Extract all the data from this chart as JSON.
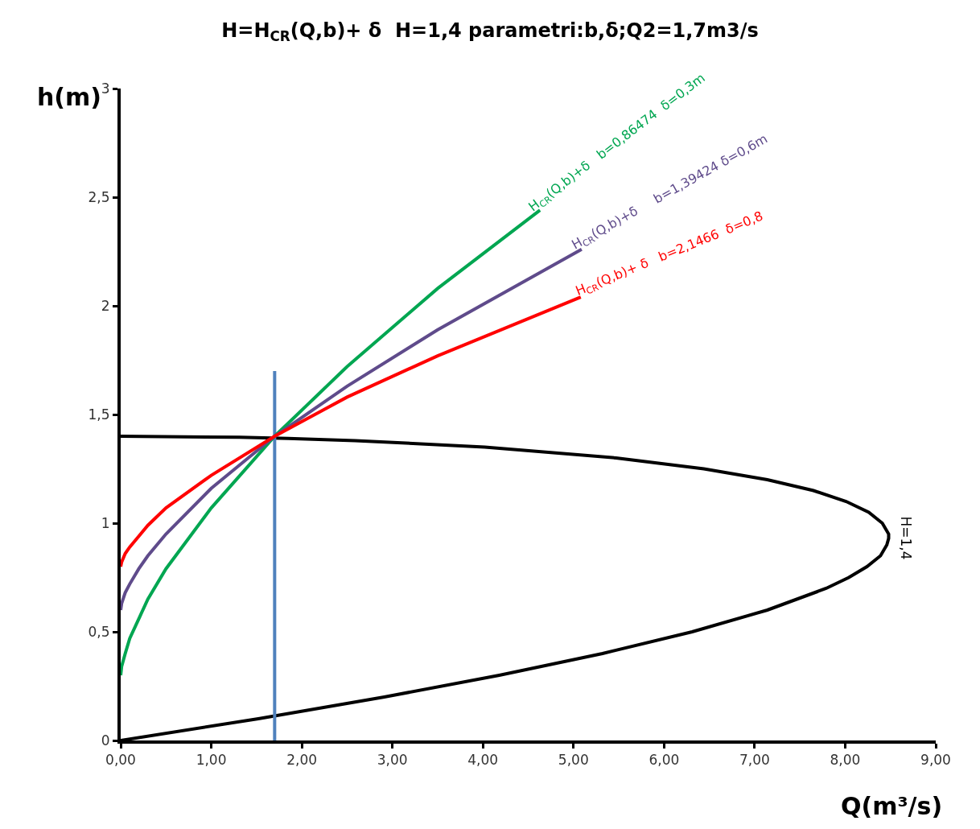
{
  "chart_data": {
    "type": "line",
    "title": "H=H$_{CR}$(Q,b)+ δ  H=1,4 parametri:b,δ;Q2=1,7m3/s",
    "xlabel": "Q(m³/s)",
    "ylabel": "h(m)",
    "xlim": [
      0,
      9
    ],
    "ylim": [
      0,
      3
    ],
    "xticks": [
      {
        "value": 0,
        "label": "0,00"
      },
      {
        "value": 1,
        "label": "1,00"
      },
      {
        "value": 2,
        "label": "2,00"
      },
      {
        "value": 3,
        "label": "3,00"
      },
      {
        "value": 4,
        "label": "4,00"
      },
      {
        "value": 5,
        "label": "5,00"
      },
      {
        "value": 6,
        "label": "6,00"
      },
      {
        "value": 7,
        "label": "7,00"
      },
      {
        "value": 8,
        "label": "8,00"
      },
      {
        "value": 9,
        "label": "9,00"
      }
    ],
    "yticks": [
      0,
      {
        "value": 0.5,
        "label": "0,5"
      },
      1,
      {
        "value": 1.5,
        "label": "1,5"
      },
      2,
      {
        "value": 2.5,
        "label": "2,5"
      },
      3
    ],
    "legend": false,
    "marker": "none",
    "line_style": "solid",
    "series": [
      {
        "name": "H=1,4",
        "color": "#000000",
        "x": [
          0,
          1.52,
          2.91,
          4.18,
          5.32,
          6.31,
          7.14,
          7.79,
          8.04,
          8.24,
          8.39,
          8.46,
          8.48,
          8.48,
          8.41,
          8.26,
          8.01,
          7.65,
          7.14,
          6.44,
          5.47,
          4.02,
          2.59,
          1.85,
          1.31,
          0
        ],
        "values": [
          0,
          0.1,
          0.2,
          0.3,
          0.4,
          0.5,
          0.6,
          0.7,
          0.75,
          0.8,
          0.85,
          0.9,
          0.93,
          0.95,
          1.0,
          1.05,
          1.1,
          1.15,
          1.2,
          1.25,
          1.3,
          1.35,
          1.38,
          1.39,
          1.395,
          1.4
        ]
      },
      {
        "color": "#4f81bd",
        "x": [
          1.7,
          1.7
        ],
        "values": [
          0,
          1.7
        ]
      },
      {
        "name": "H$_{CR}$(Q,b)+δ   b=0,86474  δ=0,3m",
        "color": "#00a651",
        "x": [
          0,
          0.01,
          0.05,
          0.1,
          0.2,
          0.3,
          0.5,
          1,
          1.7,
          2.5,
          3.5,
          4.63
        ],
        "values": [
          0.3,
          0.34,
          0.4,
          0.47,
          0.56,
          0.65,
          0.79,
          1.07,
          1.4,
          1.72,
          2.08,
          2.44
        ]
      },
      {
        "name": "H$_{CR}$(Q,b)+δ     b=1,39424 δ=0,6m",
        "color": "#5f4b8b",
        "x": [
          0,
          0.01,
          0.05,
          0.1,
          0.2,
          0.3,
          0.5,
          1,
          1.7,
          2.5,
          3.5,
          5.09
        ],
        "values": [
          0.6,
          0.63,
          0.68,
          0.72,
          0.79,
          0.85,
          0.95,
          1.16,
          1.4,
          1.63,
          1.89,
          2.26
        ]
      },
      {
        "name": "H$_{CR}$(Q,b)+ δ   b=2,1466  δ=0,8",
        "color": "#ff0000",
        "x": [
          0,
          0.01,
          0.05,
          0.1,
          0.2,
          0.3,
          0.5,
          1,
          1.7,
          2.5,
          3.5,
          5.08
        ],
        "values": [
          0.8,
          0.82,
          0.86,
          0.89,
          0.94,
          0.99,
          1.07,
          1.22,
          1.4,
          1.58,
          1.77,
          2.04
        ]
      }
    ]
  }
}
